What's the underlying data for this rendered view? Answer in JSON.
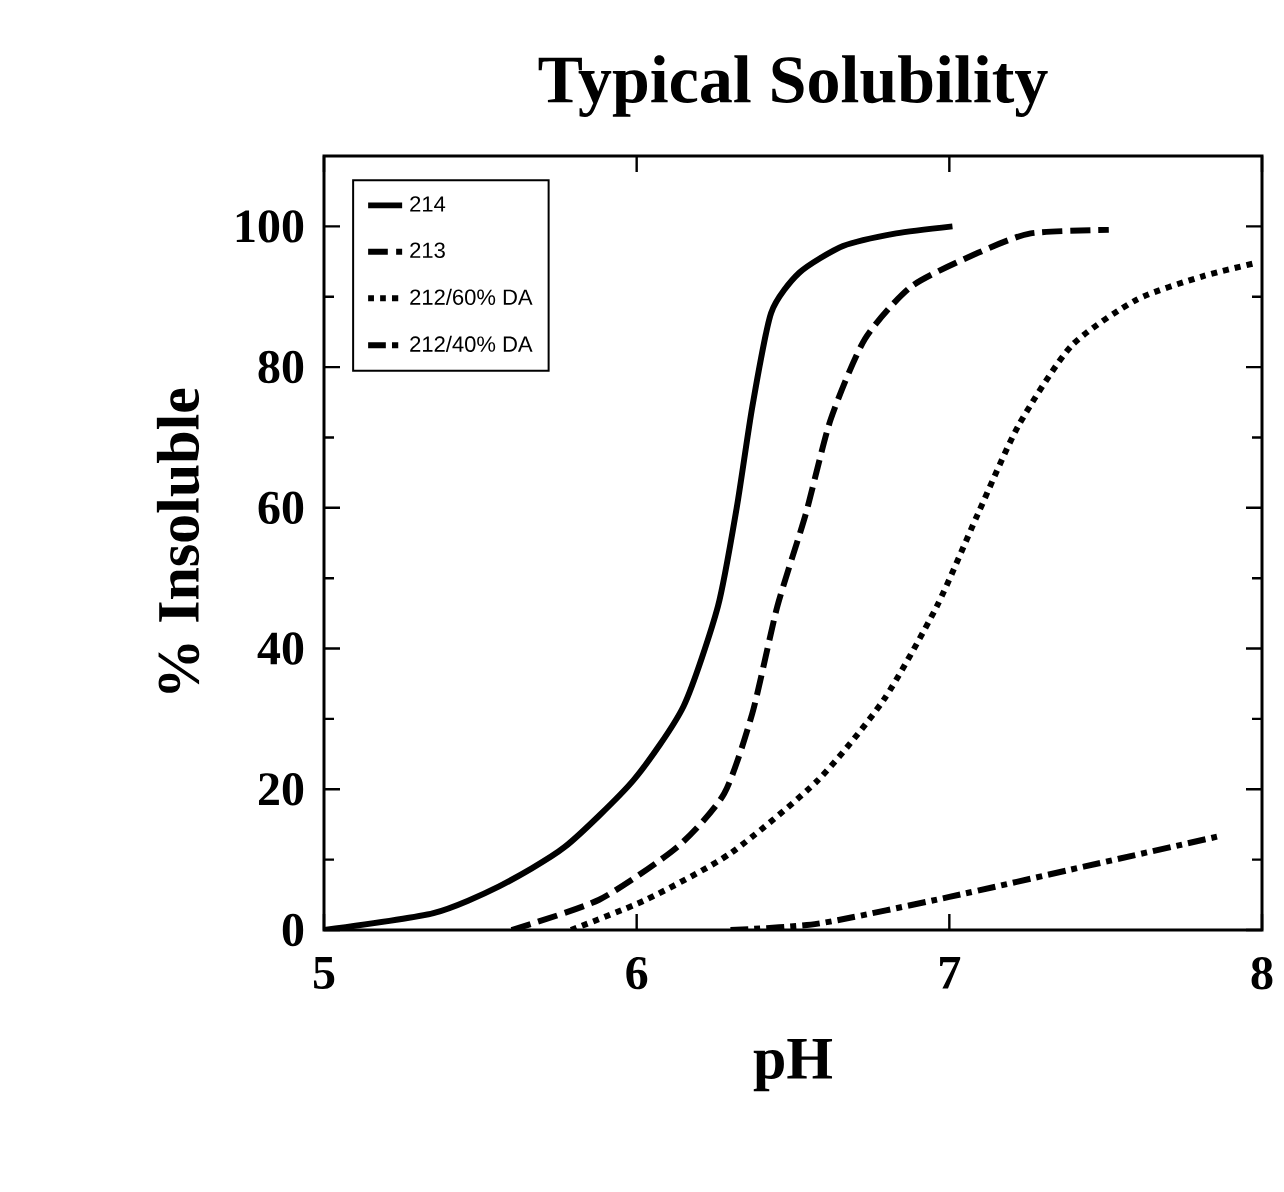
{
  "chart_data": {
    "type": "line",
    "title": "Typical Solubility",
    "xlabel": "pH",
    "ylabel": "% Insoluble",
    "xlim": [
      5,
      8
    ],
    "xticks": [
      5,
      6,
      7,
      8
    ],
    "ylim": [
      0,
      110
    ],
    "yticks": [
      0,
      20,
      40,
      60,
      80,
      100
    ],
    "legend": "top left",
    "grid": false,
    "series": [
      {
        "name": "214",
        "color": "#000000",
        "line_style": "solid",
        "x": [
          5,
          5.35,
          5.56,
          5.77,
          5.99,
          6.15,
          6.26,
          6.32,
          6.37,
          6.43,
          6.52,
          6.66,
          6.83,
          7.01
        ],
        "values": [
          0,
          2.4,
          6.2,
          11.8,
          21.3,
          31.8,
          46,
          60,
          74.4,
          87.7,
          93.4,
          97.2,
          99,
          100
        ]
      },
      {
        "name": "213",
        "color": "#000000",
        "line_style": "dashed",
        "x": [
          5.6,
          5.88,
          6.13,
          6.28,
          6.37,
          6.45,
          6.54,
          6.62,
          6.73,
          6.88,
          7.09,
          7.26,
          7.51
        ],
        "values": [
          0,
          4.3,
          11.8,
          19.4,
          30.8,
          46,
          59,
          72.5,
          84,
          91.5,
          96.2,
          99,
          99.5
        ]
      },
      {
        "name": "212/60% DA",
        "color": "#000000",
        "line_style": "dotted",
        "x": [
          5.79,
          6.03,
          6.3,
          6.58,
          6.79,
          6.96,
          7.09,
          7.22,
          7.39,
          7.6,
          7.81,
          7.98
        ],
        "values": [
          0,
          4.3,
          10.9,
          21.3,
          32.7,
          46,
          59,
          71.6,
          83,
          89.6,
          92.9,
          94.8
        ]
      },
      {
        "name": "212/40% DA",
        "color": "#000000",
        "line_style": "dashdotted",
        "x": [
          6.3,
          6.58,
          7.0,
          7.43,
          7.86
        ],
        "values": [
          0,
          0.9,
          4.7,
          9.0,
          13.3
        ]
      }
    ]
  }
}
